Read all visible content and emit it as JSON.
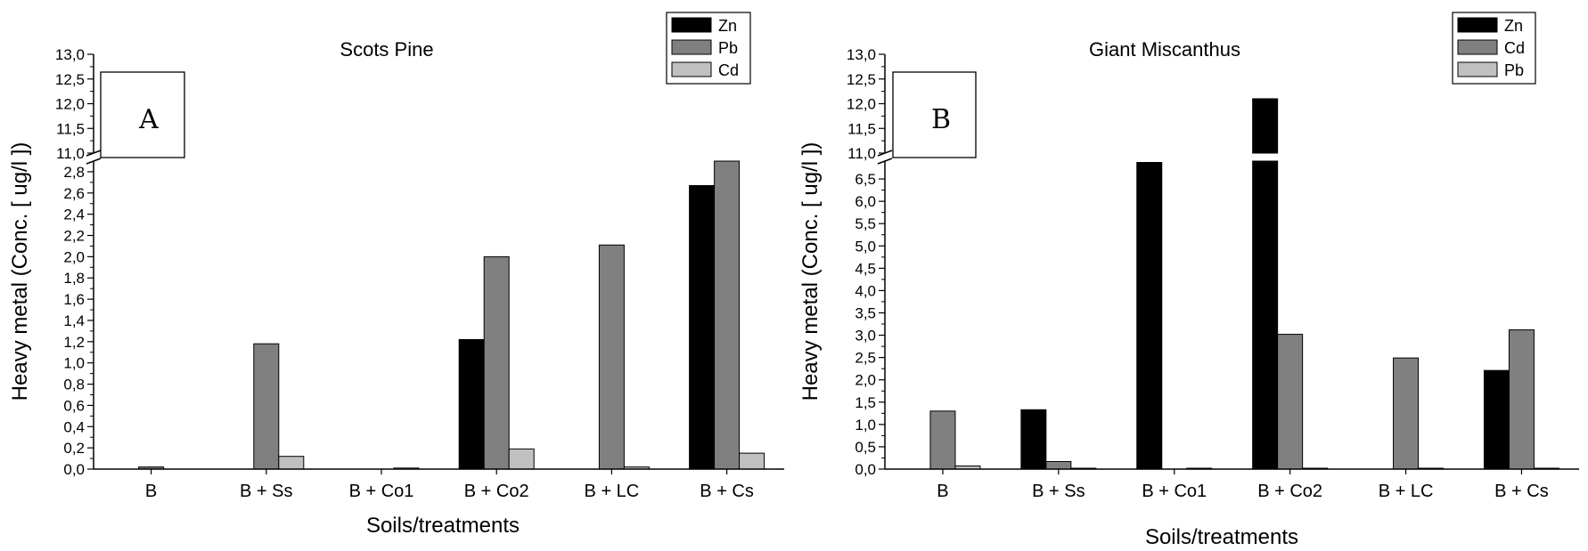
{
  "chart_data": [
    {
      "type": "bar",
      "panel_label": "A",
      "title": "Scots Pine",
      "xlabel": "Soils/treatments",
      "ylabel": "Heavy metal (Conc. [ ug/l ])",
      "categories": [
        "B",
        "B + Ss",
        "B + Co1",
        "B + Co2",
        "B + LC",
        "B + Cs"
      ],
      "series": [
        {
          "name": "Zn",
          "color": "#000000",
          "values": [
            0,
            0,
            0,
            1.22,
            0,
            2.67
          ]
        },
        {
          "name": "Pb",
          "color": "#808080",
          "values": [
            0.02,
            1.18,
            0,
            2.0,
            2.11,
            2.98
          ]
        },
        {
          "name": "Cd",
          "color": "#c0c0c0",
          "values": [
            0,
            0.12,
            0.01,
            0.19,
            0.02,
            0.15
          ]
        }
      ],
      "ylim_lower": [
        0,
        2.9
      ],
      "ylim_upper": [
        11.0,
        13.0
      ],
      "yticks_lower": [
        "0,0",
        "0,2",
        "0,4",
        "0,6",
        "0,8",
        "1,0",
        "1,2",
        "1,4",
        "1,6",
        "1,8",
        "2,0",
        "2,2",
        "2,4",
        "2,6",
        "2,8"
      ],
      "yticks_upper": [
        "11,0",
        "11,5",
        "12,0",
        "12,5",
        "13,0"
      ],
      "axis_break": true,
      "legend_position": "top-right",
      "grid": false
    },
    {
      "type": "bar",
      "panel_label": "B",
      "title": "Giant Miscanthus",
      "xlabel": "Soils/treatments",
      "ylabel": "Heavy metal (Conc. [ ug/l ])",
      "categories": [
        "B",
        "B + Ss",
        "B + Co1",
        "B + Co2",
        "B + LC",
        "B + Cs"
      ],
      "series": [
        {
          "name": "Zn",
          "color": "#000000",
          "values": [
            0,
            1.33,
            6.87,
            12.1,
            0,
            2.21
          ]
        },
        {
          "name": "Cd",
          "color": "#808080",
          "values": [
            1.3,
            0.17,
            0,
            3.02,
            2.49,
            3.12
          ]
        },
        {
          "name": "Pb",
          "color": "#c0c0c0",
          "values": [
            0.07,
            0.02,
            0.02,
            0.02,
            0.02,
            0.02
          ]
        }
      ],
      "ylim_lower": [
        0,
        6.9
      ],
      "ylim_upper": [
        11.0,
        13.0
      ],
      "yticks_lower": [
        "0,0",
        "0,5",
        "1,0",
        "1,5",
        "2,0",
        "2,5",
        "3,0",
        "3,5",
        "4,0",
        "4,5",
        "5,0",
        "5,5",
        "6,0",
        "6,5"
      ],
      "yticks_upper": [
        "11,0",
        "11,5",
        "12,0",
        "12,5",
        "13,0"
      ],
      "axis_break": true,
      "legend_position": "top-right",
      "grid": false
    }
  ]
}
